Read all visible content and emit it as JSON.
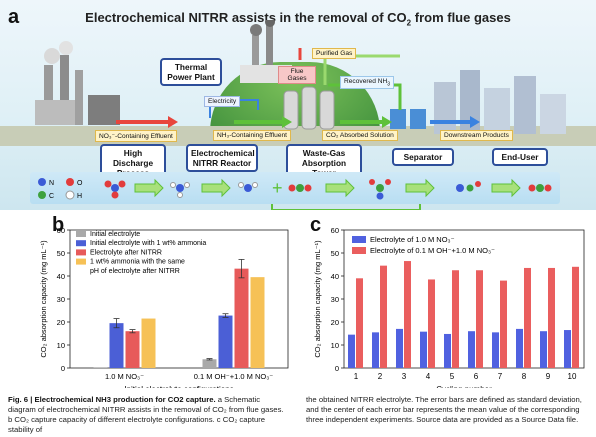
{
  "panel_a": {
    "letter": "a",
    "title_main": "Electrochemical NITRR assists in the removal of CO",
    "title_sub": "2",
    "title_end": " from flue gases",
    "labels": {
      "thermal": "Thermal Power Plant",
      "flue": "Flue Gases",
      "purified": "Purified Gas",
      "recovered": "Recovered NH",
      "recovered_sub": "3",
      "electricity": "Electricity",
      "no3_effluent": "NO₃⁻-Containing Effluent",
      "nh3_effluent": "NH₃-Containing Effluent",
      "co2_solution": "CO₂ Absorbed Solution",
      "downstream": "Downstream Products"
    },
    "boxes": {
      "industries": "High Discharge Process Industries",
      "reactor": "Electrochemical NITRR Reactor",
      "tower": "Waste-Gas Absorption Tower",
      "separator": "Separator",
      "enduser": "End-User"
    },
    "atom_legend": [
      "N",
      "O",
      "C",
      "H"
    ]
  },
  "panel_b": {
    "letter": "b",
    "chart_data": {
      "type": "bar",
      "categories": [
        "1.0 M NO₃⁻",
        "0.1 M OH⁻+1.0 M NO₃⁻"
      ],
      "series": [
        {
          "name": "Initial electrolyte",
          "values": [
            0.3,
            3.8
          ],
          "errors": [
            0,
            0.3
          ],
          "color": "#a9a9a9"
        },
        {
          "name": "Initial electrolyte with 1 wt% ammonia",
          "values": [
            19.5,
            22.8
          ],
          "errors": [
            2.0,
            0.8
          ],
          "color": "#4b5fd6"
        },
        {
          "name": "Electrolyte after NITRR",
          "values": [
            16.0,
            43.2
          ],
          "errors": [
            0.7,
            4.0
          ],
          "color": "#e75a5a"
        },
        {
          "name": "1 wt% ammonia with the same pH of electrolyte after NITRR",
          "values": [
            21.5,
            39.5
          ],
          "errors": [
            0,
            0
          ],
          "color": "#f6c156"
        }
      ],
      "xlabel": "Initial electrolyte configurations",
      "ylabel": "CO₂ absorption capacity (mg mL⁻¹)",
      "ylim": [
        0,
        60
      ],
      "yticks": [
        0,
        10,
        20,
        30,
        40,
        50,
        60
      ],
      "legend_lines": [
        "Initial electrolyte",
        "Initial electrolyte with 1 wt% ammonia",
        "Electrolyte after NITRR",
        "1 wt% ammonia with the same",
        "pH of electrolyte after NITRR"
      ]
    }
  },
  "panel_c": {
    "letter": "c",
    "chart_data": {
      "type": "bar",
      "categories": [
        "1",
        "2",
        "3",
        "4",
        "5",
        "6",
        "7",
        "8",
        "9",
        "10"
      ],
      "series": [
        {
          "name": "Electrolyte of 1.0 M NO₃⁻",
          "values": [
            14.5,
            15.5,
            17.0,
            15.8,
            14.8,
            16.0,
            15.5,
            17.0,
            16.0,
            16.5
          ],
          "color": "#5061e0"
        },
        {
          "name": "Electrolyte of 0.1 M OH⁻+1.0 M NO₃⁻",
          "values": [
            39.0,
            44.5,
            46.5,
            38.5,
            42.5,
            42.5,
            38.0,
            43.5,
            43.5,
            44.0
          ],
          "color": "#ea5e5e"
        }
      ],
      "xlabel": "Cycling number",
      "ylabel": "CO₂ absorption capacity (mg mL⁻¹)",
      "ylim": [
        0,
        60
      ],
      "yticks": [
        0,
        10,
        20,
        30,
        40,
        50,
        60
      ]
    }
  },
  "caption": {
    "fig": "Fig. 6 | ",
    "title": "Electrochemical NH3 production for CO2 capture.",
    "left_rest": " a Schematic diagram of electrochemical NITRR assists in the removal of CO₂ from flue gases. b CO₂ capture capacity of different electrolyte configurations. c CO₂ capture stability of",
    "right": "the obtained NITRR electrolyte. The error bars are defined as standard deviation, and the center of each error bar represents the mean value of the corresponding three independent experiments. Source data are provided as a Source Data file."
  },
  "colors": {
    "box_border": "#2d4e9a",
    "arrow_red": "#e8453c",
    "arrow_green": "#5ec13a",
    "arrow_blue": "#3a82e0"
  }
}
